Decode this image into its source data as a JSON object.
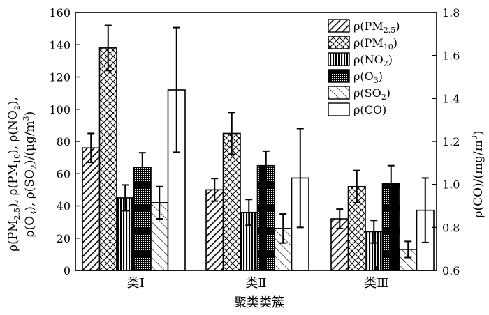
{
  "chart_data": {
    "type": "bar",
    "categories": [
      "类Ⅰ",
      "类Ⅱ",
      "类Ⅲ"
    ],
    "xlabel": "聚类类簇",
    "ylabel_left": {
      "line1": [
        "ρ(PM",
        "2.5",
        "), ρ(PM",
        "10",
        "), ρ(NO",
        "2",
        "),"
      ],
      "line2": [
        "ρ(O",
        "3",
        "), ρ(SO",
        "2",
        ")/(μg/m",
        "3",
        ")"
      ]
    },
    "ylabel_right": [
      "ρ(CO)/(mg/m",
      "3",
      ")"
    ],
    "ylim_left": [
      0,
      160
    ],
    "yticks_left": [
      "0",
      "20",
      "40",
      "60",
      "80",
      "100",
      "120",
      "140",
      "160"
    ],
    "ylim_right": [
      0.6,
      1.8
    ],
    "yticks_right": [
      "0.6",
      "0.8",
      "1.0",
      "1.2",
      "1.4",
      "1.6",
      "1.8"
    ],
    "legend_position": "top-right",
    "series": [
      {
        "name": "ρ(PM2.5)",
        "label_base": "ρ(PM",
        "label_sub": "2.5",
        "label_tail": ")",
        "pattern": "diag-right",
        "axis": "left",
        "values": [
          76,
          50,
          32
        ],
        "errors": [
          9,
          7,
          6
        ]
      },
      {
        "name": "ρ(PM10)",
        "label_base": "ρ(PM",
        "label_sub": "10",
        "label_tail": ")",
        "pattern": "crosshatch",
        "axis": "left",
        "values": [
          138,
          85,
          52
        ],
        "errors": [
          14,
          13,
          10
        ]
      },
      {
        "name": "ρ(NO2)",
        "label_base": "ρ(NO",
        "label_sub": "2",
        "label_tail": ")",
        "pattern": "vertical",
        "axis": "left",
        "values": [
          45,
          36,
          24
        ],
        "errors": [
          8,
          8,
          7
        ]
      },
      {
        "name": "ρ(O3)",
        "label_base": "ρ(O",
        "label_sub": "3",
        "label_tail": ")",
        "pattern": "dense-dots",
        "axis": "left",
        "values": [
          64,
          65,
          54
        ],
        "errors": [
          9,
          9,
          11
        ]
      },
      {
        "name": "ρ(SO2)",
        "label_base": "ρ(SO",
        "label_sub": "2",
        "label_tail": ")",
        "pattern": "diag-left",
        "axis": "left",
        "values": [
          42,
          26,
          13
        ],
        "errors": [
          10,
          9,
          5
        ]
      },
      {
        "name": "ρ(CO)",
        "label_base": "ρ(CO",
        "label_sub": "",
        "label_tail": ")",
        "pattern": "empty",
        "axis": "right",
        "values": [
          1.44,
          1.03,
          0.88
        ],
        "errors": [
          0.29,
          0.23,
          0.15
        ]
      }
    ]
  }
}
